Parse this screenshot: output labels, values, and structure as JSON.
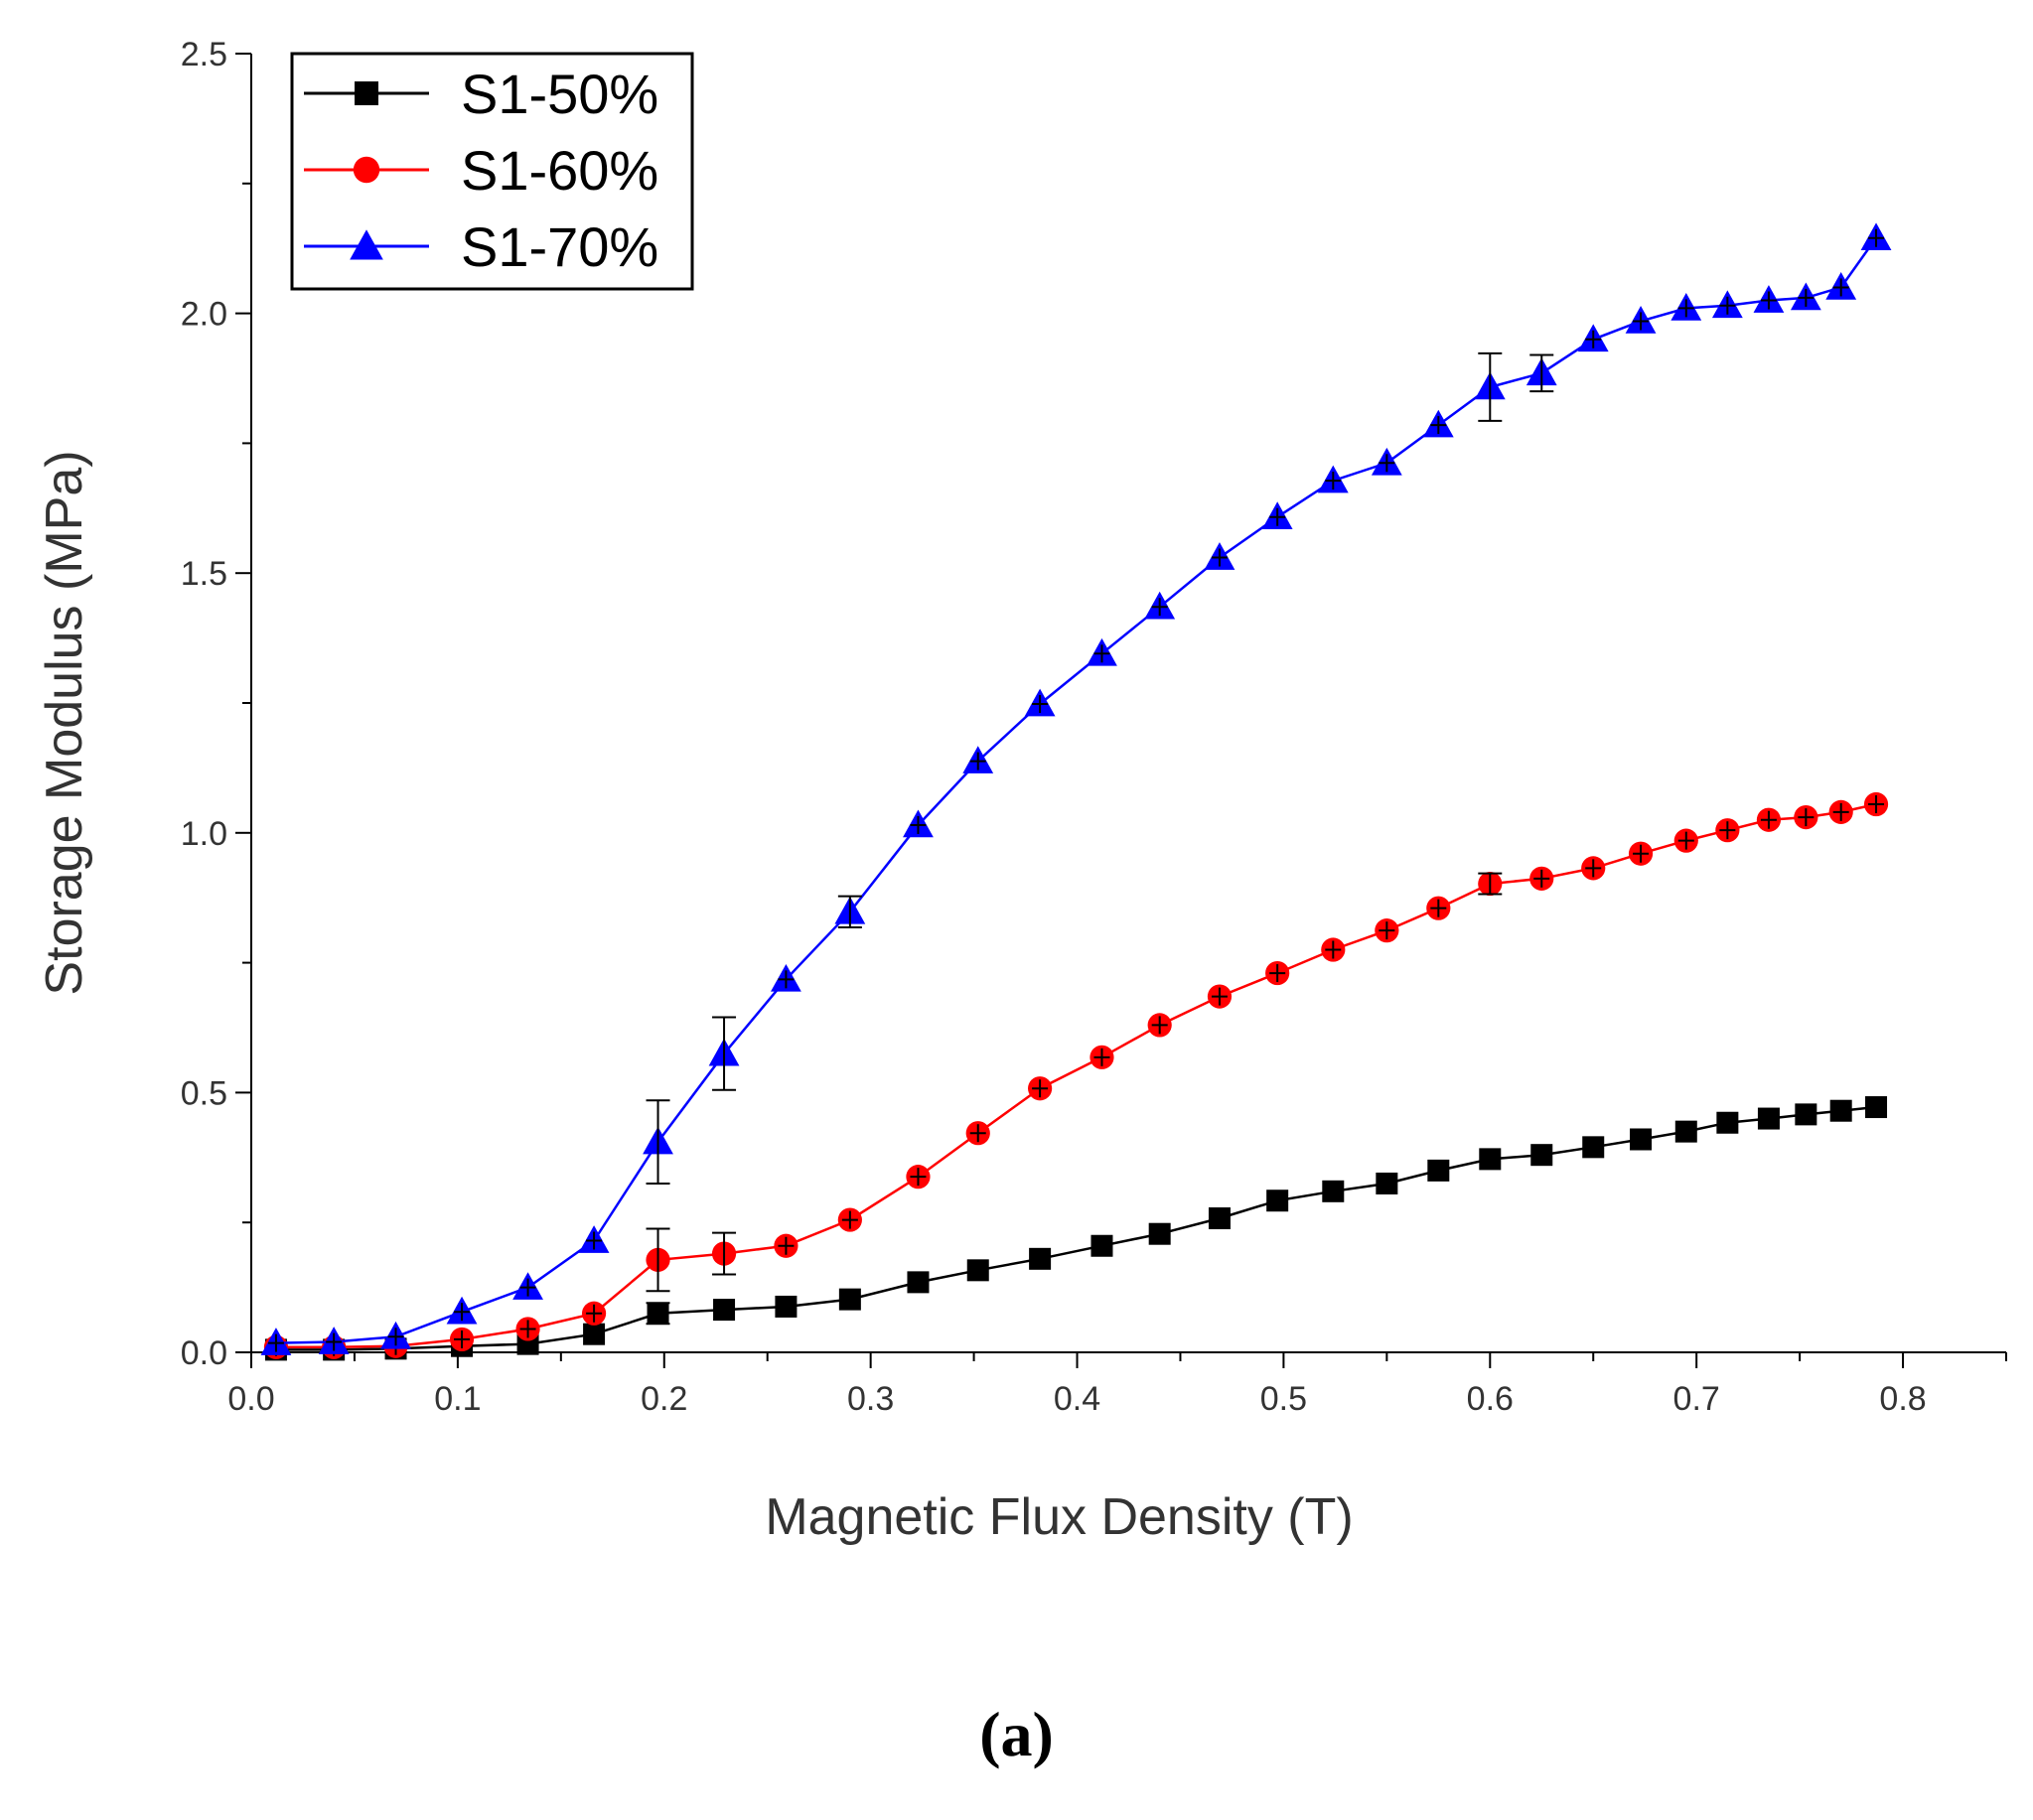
{
  "chart_data": {
    "type": "line",
    "title": "",
    "xlabel": "Magnetic Flux Density (T)",
    "ylabel": "Storage Modulus (MPa)",
    "xlim": [
      0.0,
      0.85
    ],
    "ylim": [
      0.0,
      2.5
    ],
    "xticks": [
      "0.0",
      "0.1",
      "0.2",
      "0.3",
      "0.4",
      "0.5",
      "0.6",
      "0.7",
      "0.8"
    ],
    "yticks": [
      "0.0",
      "0.5",
      "1.0",
      "1.5",
      "2.0",
      "2.5"
    ],
    "legend_position": "top-left",
    "panel_label": "(a)",
    "x": [
      0.012,
      0.04,
      0.07,
      0.102,
      0.134,
      0.166,
      0.197,
      0.229,
      0.259,
      0.29,
      0.323,
      0.352,
      0.382,
      0.412,
      0.44,
      0.469,
      0.497,
      0.524,
      0.55,
      0.575,
      0.6,
      0.625,
      0.65,
      0.673,
      0.695,
      0.715,
      0.735,
      0.753,
      0.77,
      0.787
    ],
    "series": [
      {
        "name": "S1-50%",
        "color": "#000000",
        "marker": "square",
        "values": [
          0.005,
          0.005,
          0.007,
          0.012,
          0.016,
          0.035,
          0.075,
          0.082,
          0.088,
          0.102,
          0.135,
          0.158,
          0.18,
          0.205,
          0.228,
          0.258,
          0.292,
          0.31,
          0.325,
          0.35,
          0.372,
          0.38,
          0.395,
          0.41,
          0.425,
          0.442,
          0.45,
          0.458,
          0.465,
          0.472
        ],
        "errors": [
          0.0,
          0.0,
          0.0,
          0.0,
          0.0,
          0.0,
          0.02,
          0.0,
          0.0,
          0.0,
          0.0,
          0.0,
          0.0,
          0.0,
          0.0,
          0.0,
          0.0,
          0.0,
          0.0,
          0.0,
          0.0,
          0.0,
          0.0,
          0.0,
          0.0,
          0.0,
          0.0,
          0.0,
          0.0,
          0.0
        ]
      },
      {
        "name": "S1-60%",
        "color": "#ff0000",
        "marker": "circle",
        "values": [
          0.01,
          0.01,
          0.012,
          0.025,
          0.045,
          0.075,
          0.178,
          0.19,
          0.205,
          0.255,
          0.338,
          0.422,
          0.508,
          0.568,
          0.63,
          0.685,
          0.73,
          0.775,
          0.812,
          0.855,
          0.902,
          0.912,
          0.932,
          0.96,
          0.985,
          1.005,
          1.025,
          1.03,
          1.04,
          1.055
        ],
        "errors": [
          0.0,
          0.0,
          0.0,
          0.0,
          0.0,
          0.0,
          0.06,
          0.04,
          0.0,
          0.0,
          0.0,
          0.0,
          0.0,
          0.0,
          0.0,
          0.0,
          0.0,
          0.0,
          0.0,
          0.0,
          0.02,
          0.0,
          0.0,
          0.0,
          0.0,
          0.0,
          0.0,
          0.0,
          0.0,
          0.0
        ]
      },
      {
        "name": "S1-70%",
        "color": "#0000ff",
        "marker": "triangle",
        "values": [
          0.018,
          0.02,
          0.03,
          0.078,
          0.125,
          0.215,
          0.405,
          0.575,
          0.718,
          0.848,
          1.015,
          1.138,
          1.248,
          1.345,
          1.435,
          1.53,
          1.608,
          1.678,
          1.712,
          1.785,
          1.858,
          1.885,
          1.95,
          1.985,
          2.01,
          2.015,
          2.025,
          2.03,
          2.05,
          2.145
        ],
        "errors": [
          0.0,
          0.0,
          0.0,
          0.0,
          0.0,
          0.0,
          0.08,
          0.07,
          0.0,
          0.03,
          0.0,
          0.0,
          0.0,
          0.0,
          0.0,
          0.0,
          0.0,
          0.0,
          0.0,
          0.0,
          0.065,
          0.035,
          0.0,
          0.0,
          0.0,
          0.0,
          0.0,
          0.0,
          0.0,
          0.0
        ]
      }
    ]
  }
}
